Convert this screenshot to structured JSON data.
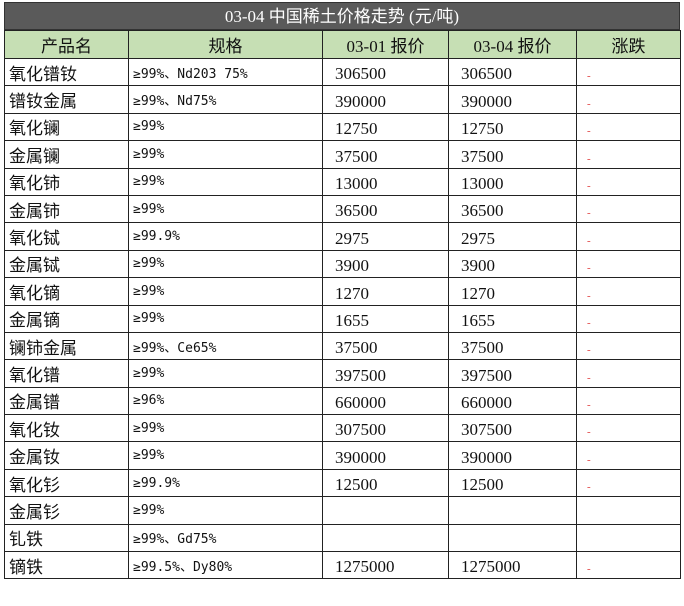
{
  "header": {
    "title": "03-04 中国稀土价格走势 (元/吨)"
  },
  "table": {
    "columns": [
      "产品名",
      "规格",
      "03-01 报价",
      "03-04 报价",
      "涨跌"
    ],
    "rows": [
      [
        "氧化镨钕",
        "≥99%、Nd203 75%",
        "306500",
        "306500",
        "-"
      ],
      [
        "镨钕金属",
        "≥99%、Nd75%",
        "390000",
        "390000",
        "-"
      ],
      [
        "氧化镧",
        "≥99%",
        "12750",
        "12750",
        "-"
      ],
      [
        "金属镧",
        "≥99%",
        "37500",
        "37500",
        "-"
      ],
      [
        "氧化铈",
        "≥99%",
        "13000",
        "13000",
        "-"
      ],
      [
        "金属铈",
        "≥99%",
        "36500",
        "36500",
        "-"
      ],
      [
        "氧化铽",
        "≥99.9%",
        "2975",
        "2975",
        "-"
      ],
      [
        "金属铽",
        "≥99%",
        "3900",
        "3900",
        "-"
      ],
      [
        "氧化镝",
        "≥99%",
        "1270",
        "1270",
        "-"
      ],
      [
        "金属镝",
        "≥99%",
        "1655",
        "1655",
        "-"
      ],
      [
        "镧铈金属",
        "≥99%、Ce65%",
        "37500",
        "37500",
        "-"
      ],
      [
        "氧化镨",
        "≥99%",
        "397500",
        "397500",
        "-"
      ],
      [
        "金属镨",
        "≥96%",
        "660000",
        "660000",
        "-"
      ],
      [
        "氧化钕",
        "≥99%",
        "307500",
        "307500",
        "-"
      ],
      [
        "金属钕",
        "≥99%",
        "390000",
        "390000",
        "-"
      ],
      [
        "氧化钐",
        "≥99.9%",
        "12500",
        "12500",
        "-"
      ],
      [
        "金属钐",
        "≥99%",
        null,
        null,
        null
      ],
      [
        "钆铁",
        "≥99%、Gd75%",
        null,
        null,
        null
      ],
      [
        "镝铁",
        "≥99.5%、Dy80%",
        "1275000",
        "1275000",
        "-"
      ]
    ]
  }
}
